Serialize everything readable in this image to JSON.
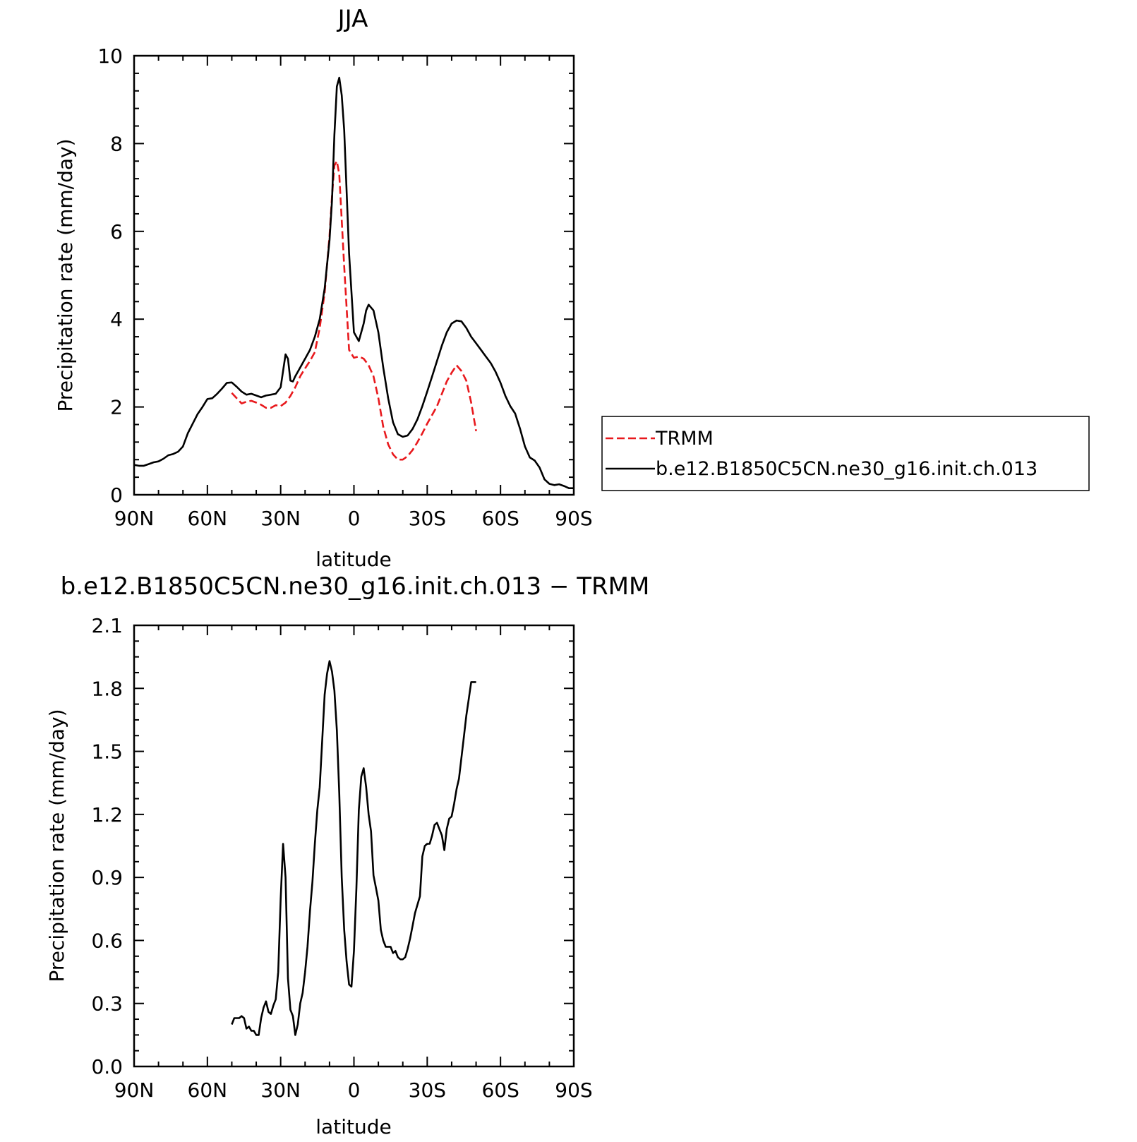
{
  "chart_data": [
    {
      "type": "line",
      "title": "JJA",
      "xlabel": "latitude",
      "ylabel": "Precipitation rate (mm/day)",
      "xlim": [
        90,
        -90
      ],
      "ylim": [
        0,
        10
      ],
      "x_ticks": [
        90,
        60,
        30,
        0,
        -30,
        -60,
        -90
      ],
      "x_tick_labels": [
        "90N",
        "60N",
        "30N",
        "0",
        "30S",
        "60S",
        "90S"
      ],
      "y_ticks": [
        0,
        2,
        4,
        6,
        8,
        10
      ],
      "y_tick_labels": [
        "0",
        "2",
        "4",
        "6",
        "8",
        "10"
      ],
      "legend_position": "right, outside plot",
      "series": [
        {
          "name": "TRMM",
          "color": "#e8191d",
          "dash": "dashed",
          "x": [
            50,
            48,
            46,
            44,
            42,
            40,
            38,
            36,
            34,
            32,
            30,
            28,
            26,
            24,
            22,
            20,
            18,
            16,
            14,
            12,
            10,
            9,
            8,
            7,
            6,
            4,
            2,
            0,
            -2,
            -4,
            -6,
            -8,
            -10,
            -12,
            -14,
            -16,
            -18,
            -20,
            -22,
            -24,
            -26,
            -28,
            -30,
            -32,
            -34,
            -36,
            -38,
            -40,
            -42,
            -44,
            -46,
            -48,
            -50
          ],
          "y": [
            2.32,
            2.2,
            2.08,
            2.12,
            2.14,
            2.1,
            2.05,
            1.98,
            1.98,
            2.04,
            2.02,
            2.1,
            2.25,
            2.45,
            2.7,
            2.88,
            3.05,
            3.25,
            3.8,
            4.6,
            5.9,
            6.8,
            7.5,
            7.6,
            7.3,
            5.2,
            3.3,
            3.12,
            3.15,
            3.1,
            2.95,
            2.7,
            2.2,
            1.55,
            1.15,
            0.92,
            0.8,
            0.8,
            0.88,
            1.02,
            1.2,
            1.4,
            1.62,
            1.82,
            2.02,
            2.3,
            2.58,
            2.78,
            2.95,
            2.82,
            2.6,
            2.1,
            1.45
          ]
        },
        {
          "name": "b.e12.B1850C5CN.ne30_g16.init.ch.013",
          "color": "#000000",
          "dash": "solid",
          "x": [
            90,
            88,
            86,
            84,
            82,
            80,
            78,
            76,
            74,
            72,
            70,
            68,
            66,
            64,
            62,
            60,
            58,
            56,
            54,
            52,
            50,
            48,
            46,
            44,
            42,
            40,
            38,
            36,
            34,
            32,
            30,
            28,
            27,
            26,
            25,
            24,
            22,
            20,
            18,
            16,
            14,
            12,
            10,
            9,
            8,
            7,
            6,
            5,
            4,
            2,
            0,
            -2,
            -4,
            -5,
            -6,
            -8,
            -10,
            -12,
            -14,
            -16,
            -18,
            -20,
            -22,
            -24,
            -26,
            -28,
            -30,
            -32,
            -34,
            -36,
            -38,
            -40,
            -42,
            -44,
            -46,
            -48,
            -50,
            -52,
            -54,
            -56,
            -58,
            -60,
            -62,
            -64,
            -66,
            -68,
            -70,
            -72,
            -74,
            -76,
            -78,
            -80,
            -82,
            -84,
            -86,
            -88,
            -90
          ],
          "y": [
            0.68,
            0.66,
            0.66,
            0.7,
            0.74,
            0.76,
            0.82,
            0.9,
            0.93,
            0.98,
            1.1,
            1.4,
            1.62,
            1.84,
            2.0,
            2.18,
            2.2,
            2.3,
            2.42,
            2.55,
            2.56,
            2.46,
            2.35,
            2.28,
            2.3,
            2.26,
            2.22,
            2.26,
            2.28,
            2.3,
            2.45,
            3.2,
            3.1,
            2.6,
            2.58,
            2.7,
            2.9,
            3.1,
            3.3,
            3.6,
            4.0,
            4.7,
            5.8,
            6.7,
            8.2,
            9.3,
            9.5,
            9.1,
            8.3,
            5.5,
            3.7,
            3.5,
            3.9,
            4.2,
            4.33,
            4.2,
            3.7,
            2.9,
            2.2,
            1.65,
            1.38,
            1.32,
            1.35,
            1.5,
            1.72,
            2.02,
            2.35,
            2.7,
            3.05,
            3.4,
            3.7,
            3.9,
            3.97,
            3.95,
            3.8,
            3.6,
            3.45,
            3.3,
            3.15,
            3.0,
            2.8,
            2.55,
            2.25,
            2.02,
            1.85,
            1.5,
            1.1,
            0.85,
            0.78,
            0.62,
            0.35,
            0.25,
            0.22,
            0.24,
            0.2,
            0.15,
            0.15
          ]
        }
      ]
    },
    {
      "type": "line",
      "title": "b.e12.B1850C5CN.ne30_g16.init.ch.013 − TRMM",
      "xlabel": "latitude",
      "ylabel": "Precipitation rate (mm/day)",
      "xlim": [
        90,
        -90
      ],
      "ylim": [
        0.0,
        2.1
      ],
      "x_ticks": [
        90,
        60,
        30,
        0,
        -30,
        -60,
        -90
      ],
      "x_tick_labels": [
        "90N",
        "60N",
        "30N",
        "0",
        "30S",
        "60S",
        "90S"
      ],
      "y_ticks": [
        0.0,
        0.3,
        0.6,
        0.9,
        1.2,
        1.5,
        1.8,
        2.1
      ],
      "y_tick_labels": [
        "0.0",
        "0.3",
        "0.6",
        "0.9",
        "1.2",
        "1.5",
        "1.8",
        "2.1"
      ],
      "series": [
        {
          "color": "#000000",
          "dash": "solid",
          "x": [
            50,
            49,
            47,
            46,
            45,
            44,
            43,
            42,
            41,
            40,
            39,
            38,
            37,
            36,
            35,
            34,
            33,
            32,
            31,
            30,
            29,
            28,
            27,
            26,
            25,
            24,
            23,
            22,
            21,
            20,
            19,
            18,
            17,
            16,
            15,
            14,
            13,
            12,
            11,
            10,
            9,
            8,
            7,
            6,
            5,
            4,
            3,
            2,
            1,
            0,
            -1,
            -2,
            -3,
            -4,
            -5,
            -6,
            -7,
            -8,
            -9,
            -10,
            -11,
            -12,
            -13,
            -14,
            -15,
            -16,
            -17,
            -18,
            -19,
            -20,
            -21,
            -22,
            -23,
            -24,
            -25,
            -26,
            -27,
            -28,
            -29,
            -30,
            -31,
            -32,
            -33,
            -34,
            -35,
            -36,
            -37,
            -38,
            -39,
            -40,
            -41,
            -42,
            -43,
            -44,
            -45,
            -46,
            -47,
            -48,
            -49,
            -50
          ],
          "y": [
            0.2,
            0.23,
            0.23,
            0.24,
            0.23,
            0.18,
            0.19,
            0.17,
            0.17,
            0.15,
            0.15,
            0.23,
            0.28,
            0.31,
            0.26,
            0.25,
            0.29,
            0.32,
            0.45,
            0.8,
            1.06,
            0.9,
            0.42,
            0.27,
            0.24,
            0.15,
            0.2,
            0.3,
            0.35,
            0.45,
            0.57,
            0.74,
            0.88,
            1.06,
            1.22,
            1.33,
            1.55,
            1.77,
            1.87,
            1.93,
            1.88,
            1.79,
            1.6,
            1.3,
            0.9,
            0.65,
            0.5,
            0.39,
            0.38,
            0.55,
            0.85,
            1.22,
            1.38,
            1.42,
            1.33,
            1.2,
            1.12,
            0.91,
            0.85,
            0.79,
            0.65,
            0.6,
            0.57,
            0.57,
            0.57,
            0.54,
            0.55,
            0.52,
            0.51,
            0.51,
            0.52,
            0.56,
            0.61,
            0.67,
            0.73,
            0.77,
            0.81,
            1.0,
            1.05,
            1.06,
            1.06,
            1.1,
            1.15,
            1.16,
            1.13,
            1.1,
            1.03,
            1.13,
            1.18,
            1.19,
            1.25,
            1.32,
            1.37,
            1.47,
            1.57,
            1.67,
            1.75,
            1.83,
            1.83,
            1.83
          ]
        }
      ]
    }
  ]
}
